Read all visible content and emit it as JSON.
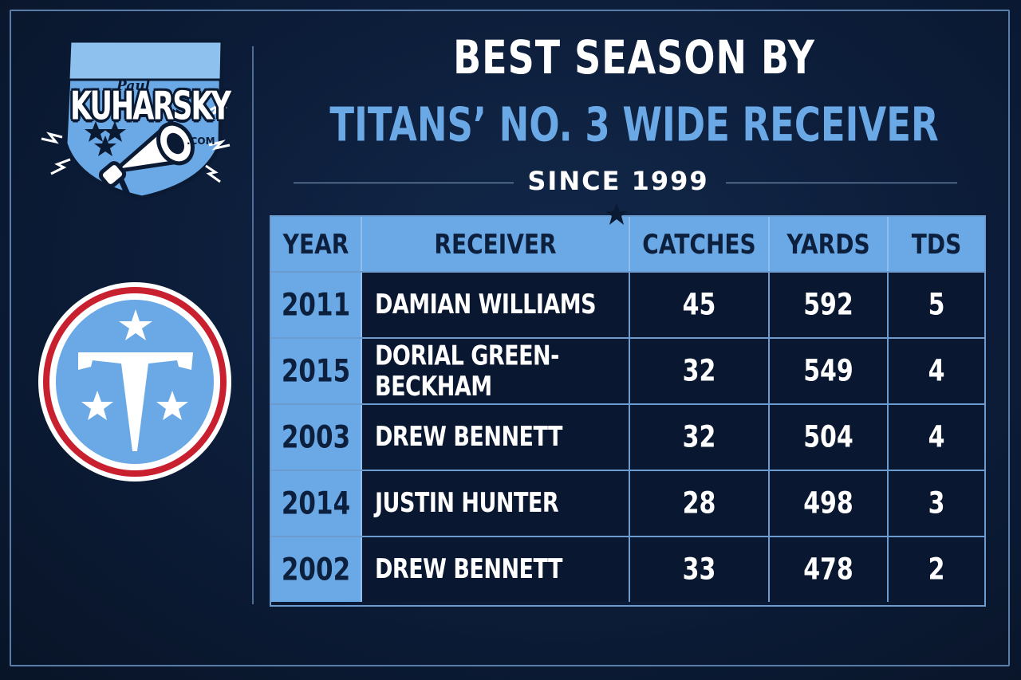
{
  "brand": {
    "first_name": "Paul",
    "last_name": "KUHARSKY",
    "domain": ".COM",
    "icon": "megaphone-icon"
  },
  "team_logo": {
    "icon": "titans-t-logo"
  },
  "title": {
    "line1": "BEST SEASON BY",
    "line2": "TITANS’ NO. 3 WIDE RECEIVER",
    "subtitle": "SINCE 1999"
  },
  "table": {
    "headers": [
      "YEAR",
      "RECEIVER",
      "CATCHES",
      "YARDS",
      "TDS"
    ],
    "rows": [
      {
        "year": "2011",
        "receiver": "DAMIAN WILLIAMS",
        "catches": "45",
        "yards": "592",
        "tds": "5"
      },
      {
        "year": "2015",
        "receiver": "DORIAL GREEN-BECKHAM",
        "catches": "32",
        "yards": "549",
        "tds": "4"
      },
      {
        "year": "2003",
        "receiver": "DREW BENNETT",
        "catches": "32",
        "yards": "504",
        "tds": "4"
      },
      {
        "year": "2014",
        "receiver": "JUSTIN HUNTER",
        "catches": "28",
        "yards": "498",
        "tds": "3"
      },
      {
        "year": "2002",
        "receiver": "DREW BENNETT",
        "catches": "33",
        "yards": "478",
        "tds": "2"
      }
    ]
  },
  "colors": {
    "background": "#0b1a33",
    "accent_blue": "#6aa9e6",
    "white": "#ffffff",
    "red": "#c8202f"
  }
}
